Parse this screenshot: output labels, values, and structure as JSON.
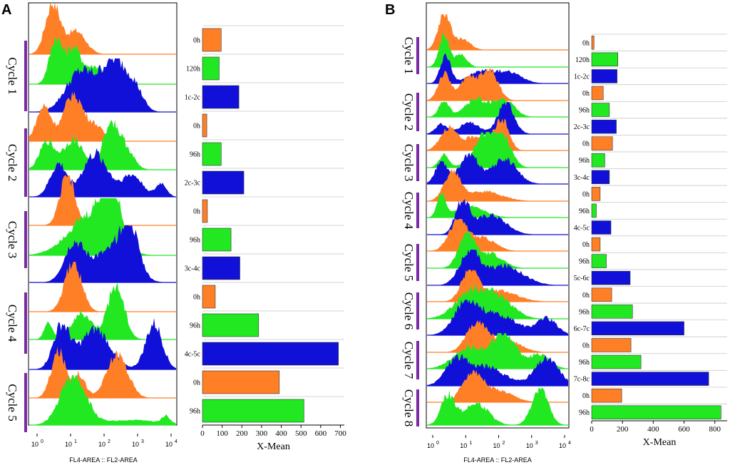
{
  "colors": {
    "orange": "#ff7f27",
    "green": "#22e822",
    "blue": "#1010d8",
    "purple": "#7b2aa6"
  },
  "chart_data": [
    {
      "panel": "A",
      "type": "bar",
      "orientation": "horizontal",
      "xlabel": "X-Mean",
      "xlim": [
        0,
        720
      ],
      "xticks": [
        0,
        100,
        200,
        300,
        400,
        500,
        600,
        700
      ],
      "categories": [
        "0h",
        "120h",
        "1c-2c",
        "0h",
        "96h",
        "2c-3c",
        "0h",
        "96h",
        "3c-4c",
        "0h",
        "96h",
        "4c-5c",
        "0h",
        "96h"
      ],
      "values": [
        95,
        85,
        185,
        22,
        95,
        210,
        25,
        145,
        190,
        65,
        285,
        690,
        390,
        515
      ],
      "bar_colors": [
        "orange",
        "green",
        "blue",
        "orange",
        "green",
        "blue",
        "orange",
        "green",
        "blue",
        "orange",
        "green",
        "blue",
        "orange",
        "green"
      ]
    },
    {
      "panel": "B",
      "type": "bar",
      "orientation": "horizontal",
      "xlabel": "X-Mean",
      "xlim": [
        0,
        880
      ],
      "xticks": [
        0,
        200,
        400,
        600,
        800
      ],
      "categories": [
        "0h",
        "120h",
        "1c-2c",
        "0h",
        "96h",
        "2c-3c",
        "0h",
        "96h",
        "3c-4c",
        "0h",
        "96h",
        "4c-5c",
        "0h",
        "96h",
        "5c-6c",
        "0h",
        "96h",
        "6c-7c",
        "0h",
        "96h",
        "7c-8c",
        "0h",
        "96h"
      ],
      "values": [
        15,
        170,
        165,
        75,
        115,
        160,
        135,
        85,
        115,
        55,
        30,
        125,
        55,
        95,
        250,
        130,
        265,
        600,
        255,
        320,
        760,
        195,
        840
      ],
      "bar_colors": [
        "orange",
        "green",
        "blue",
        "orange",
        "green",
        "blue",
        "orange",
        "green",
        "blue",
        "orange",
        "green",
        "blue",
        "orange",
        "green",
        "blue",
        "orange",
        "green",
        "blue",
        "orange",
        "green",
        "blue",
        "orange",
        "green"
      ]
    }
  ],
  "histograms": {
    "A": {
      "cycles": [
        "Cycle 1",
        "Cycle 2",
        "Cycle 3",
        "Cycle 4",
        "Cycle 5"
      ],
      "x_axis_title": "FL4-AREA :: FL2-AREA",
      "tick_bases": [
        "10",
        "10",
        "10",
        "10",
        "10"
      ],
      "tick_exponents": [
        "0",
        "1",
        "2",
        "3",
        "4"
      ]
    },
    "B": {
      "cycles": [
        "Cycle 1",
        "Cycle 2",
        "Cycle 3",
        "Cycle 4",
        "Cycle 5",
        "Cycle 6",
        "Cycle 7",
        "Cycle 8"
      ],
      "x_axis_title": "FL4-AREA :: FL2-AREA",
      "tick_bases": [
        "10",
        "10",
        "10",
        "10",
        "10"
      ],
      "tick_exponents": [
        "0",
        "1",
        "2",
        "3",
        "4"
      ]
    }
  },
  "panels": {
    "A": "A",
    "B": "B"
  }
}
